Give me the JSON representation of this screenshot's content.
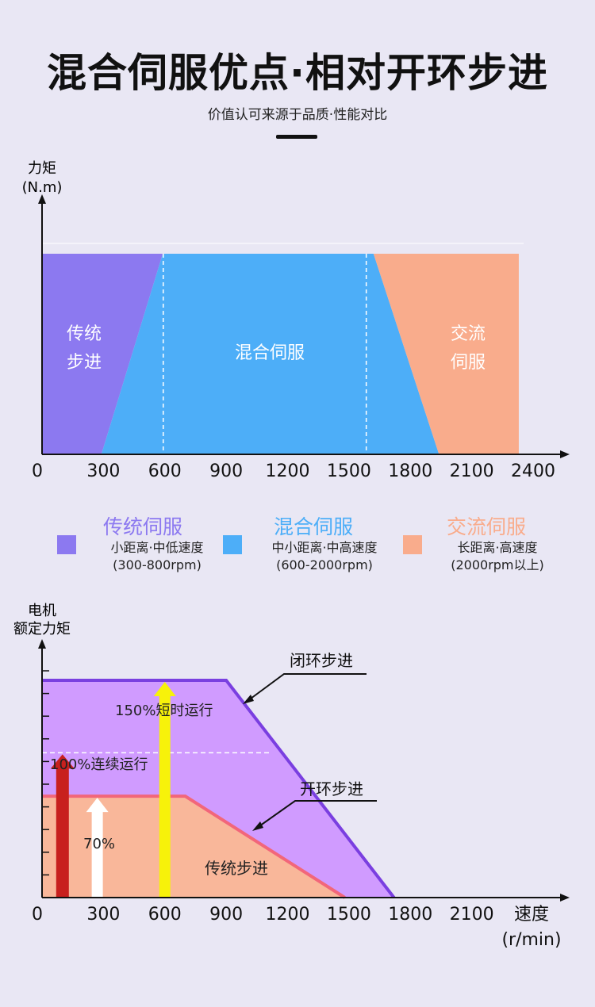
{
  "header": {
    "title": "混合伺服优点·相对开环步进",
    "subtitle": "价值认可来源于品质·性能对比"
  },
  "colors": {
    "stepper": "#8c79f0",
    "hybrid": "#4daef8",
    "ac": "#f9ac8c",
    "closed_fill": "#d09bff",
    "closed_line": "#7a3fe0",
    "open_fill": "#f9b79a",
    "open_line": "#f2667a",
    "arrow_red": "#c8201e",
    "arrow_white": "#ffffff",
    "arrow_yellow": "#f7f20a"
  },
  "chart_data": [
    {
      "type": "area",
      "ylabel_line1": "力矩",
      "ylabel_line2": "(N.m)",
      "x_ticks": [
        "0",
        "300",
        "600",
        "900",
        "1200",
        "1500",
        "1800",
        "2100",
        "2400"
      ],
      "xlim": [
        0,
        2400
      ],
      "dividers": [
        600,
        1600
      ],
      "regions": [
        {
          "name": "传统步进",
          "line1": "传统",
          "line2": "步进",
          "polygon": [
            [
              0,
              1
            ],
            [
              590,
              1
            ],
            [
              290,
              0
            ],
            [
              0,
              0
            ]
          ]
        },
        {
          "name": "混合伺服",
          "line1": "混合伺服",
          "line2": "",
          "polygon": [
            [
              590,
              1
            ],
            [
              1620,
              1
            ],
            [
              1940,
              0
            ],
            [
              290,
              0
            ]
          ]
        },
        {
          "name": "交流伺服",
          "line1": "交流",
          "line2": "伺服",
          "polygon": [
            [
              1620,
              1
            ],
            [
              2330,
              1
            ],
            [
              2330,
              0
            ],
            [
              1940,
              0
            ]
          ]
        }
      ]
    },
    {
      "type": "area",
      "ylabel_line1": "电机",
      "ylabel_line2": "额定力矩",
      "xlabel_line1": "速度",
      "xlabel_line2": "(r/min)",
      "x_ticks": [
        "0",
        "300",
        "600",
        "900",
        "1200",
        "1500",
        "1800",
        "2100"
      ],
      "xlim": [
        0,
        2400
      ],
      "ylim": [
        0,
        170
      ],
      "dashed_level": 100,
      "series": [
        {
          "name": "闭环步进",
          "points": [
            [
              0,
              150
            ],
            [
              900,
              150
            ],
            [
              1720,
              0
            ]
          ]
        },
        {
          "name": "开环步进",
          "points": [
            [
              0,
              70
            ],
            [
              700,
              70
            ],
            [
              1480,
              0
            ]
          ]
        }
      ],
      "area_label": "传统步进",
      "arrows": [
        {
          "label": "150%短时运行",
          "x": 600,
          "value": 150
        },
        {
          "label": "100%连续运行",
          "x": 100,
          "value": 100
        },
        {
          "label": "70%",
          "x": 270,
          "value": 70
        }
      ]
    }
  ],
  "legend": [
    {
      "title": "传统伺服",
      "desc1": "小距离·中低速度",
      "desc2": "(300-800rpm)"
    },
    {
      "title": "混合伺服",
      "desc1": "中小距离·中高速度",
      "desc2": "(600-2000rpm)"
    },
    {
      "title": "交流伺服",
      "desc1": "长距离·高速度",
      "desc2": "(2000rpm以上)"
    }
  ]
}
